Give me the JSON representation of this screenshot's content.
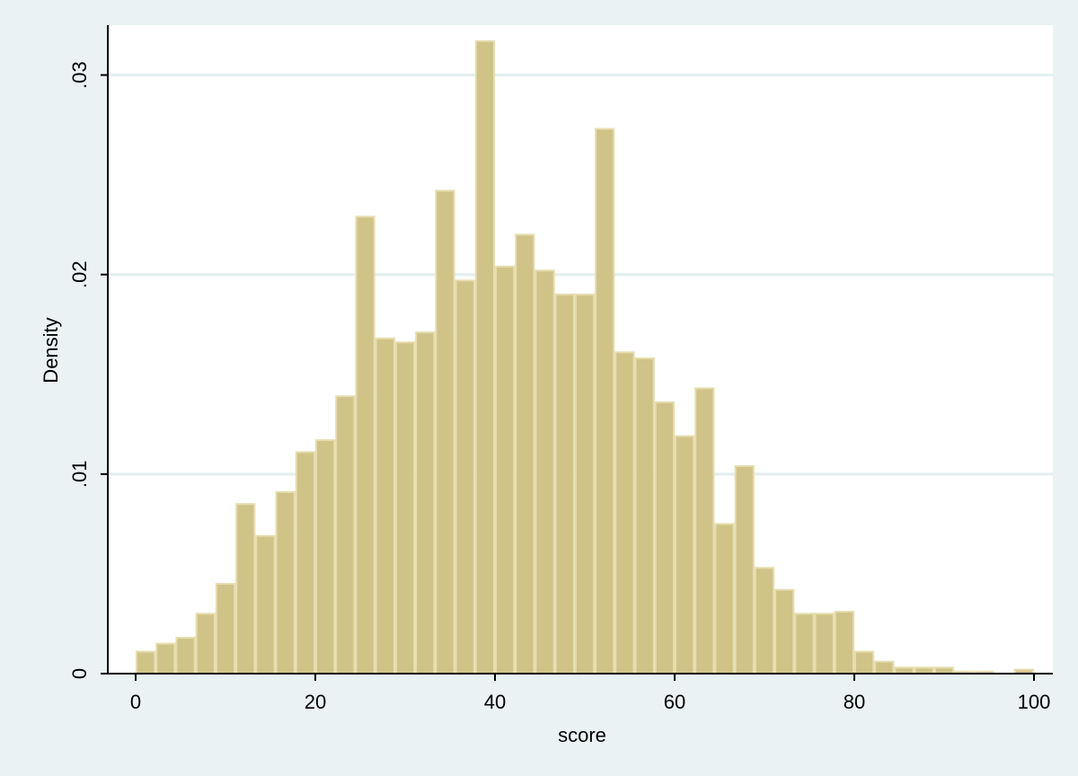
{
  "chart_data": {
    "type": "histogram",
    "x_label": "score",
    "y_label": "Density",
    "bins": [
      0,
      2.222,
      4.444,
      6.667,
      8.889,
      11.111,
      13.333,
      15.556,
      17.778,
      20,
      22.222,
      24.444,
      26.667,
      28.889,
      31.111,
      33.333,
      35.556,
      37.778,
      40,
      42.222,
      44.444,
      46.667,
      48.889,
      51.111,
      53.333,
      55.556,
      57.778,
      60,
      62.222,
      64.444,
      66.667,
      68.889,
      71.111,
      73.333,
      75.556,
      77.778,
      80,
      82.222,
      84.444,
      86.667,
      88.889,
      91.111,
      93.333,
      95.556,
      97.778,
      100
    ],
    "values": [
      0.0011,
      0.0015,
      0.0018,
      0.003,
      0.0045,
      0.0085,
      0.0069,
      0.0091,
      0.0111,
      0.0117,
      0.0139,
      0.0229,
      0.0168,
      0.0166,
      0.0171,
      0.0242,
      0.0197,
      0.0317,
      0.0204,
      0.022,
      0.0202,
      0.019,
      0.019,
      0.0273,
      0.0161,
      0.0158,
      0.0136,
      0.0119,
      0.0143,
      0.0075,
      0.0104,
      0.0053,
      0.0042,
      0.003,
      0.003,
      0.0031,
      0.0011,
      0.0006,
      0.0003,
      0.0003,
      0.0003,
      0.0001,
      0.0001,
      0,
      0.0002
    ],
    "color": "#d0c387",
    "edge_color": "#e6ddaf",
    "xlim": [
      -3.1,
      102.1
    ],
    "ylim": [
      0,
      0.0325
    ],
    "xticks": [
      0,
      20,
      40,
      60,
      80,
      100
    ],
    "yticks": [
      0,
      {
        "value": 0.01,
        "label": ".01"
      },
      {
        "value": 0.02,
        "label": ".02"
      },
      {
        "value": 0.03,
        "label": ".03"
      }
    ],
    "grid": true
  }
}
